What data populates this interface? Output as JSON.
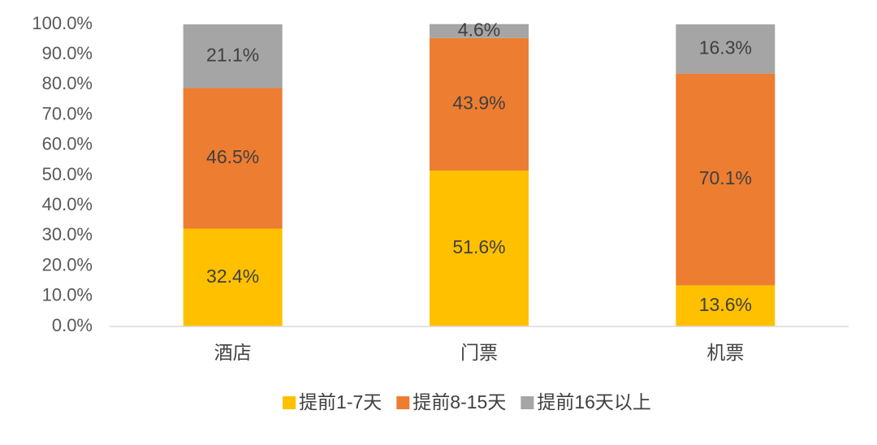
{
  "chart_data": {
    "type": "stacked-bar",
    "categories": [
      "酒店",
      "门票",
      "机票"
    ],
    "series": [
      {
        "name": "提前1-7天",
        "color": "#FFC000",
        "values": [
          32.4,
          51.6,
          13.6
        ],
        "value_labels": [
          "32.4%",
          "51.6%",
          "13.6%"
        ]
      },
      {
        "name": "提前8-15天",
        "color": "#ED7D31",
        "values": [
          46.5,
          43.9,
          70.1
        ],
        "value_labels": [
          "46.5%",
          "43.9%",
          "70.1%"
        ]
      },
      {
        "name": "提前16天以上",
        "color": "#A5A5A5",
        "values": [
          21.1,
          4.6,
          16.3
        ],
        "value_labels": [
          "21.1%",
          "4.6%",
          "16.3%"
        ]
      }
    ],
    "ylim": [
      0,
      100
    ],
    "yticks": [
      {
        "value": 0,
        "label": "0.0%"
      },
      {
        "value": 10,
        "label": "10.0%"
      },
      {
        "value": 20,
        "label": "20.0%"
      },
      {
        "value": 30,
        "label": "30.0%"
      },
      {
        "value": 40,
        "label": "40.0%"
      },
      {
        "value": 50,
        "label": "50.0%"
      },
      {
        "value": 60,
        "label": "60.0%"
      },
      {
        "value": 70,
        "label": "70.0%"
      },
      {
        "value": 80,
        "label": "80.0%"
      },
      {
        "value": 90,
        "label": "90.0%"
      },
      {
        "value": 100,
        "label": "100.0%"
      }
    ],
    "grid": false,
    "legend": "bottom"
  }
}
